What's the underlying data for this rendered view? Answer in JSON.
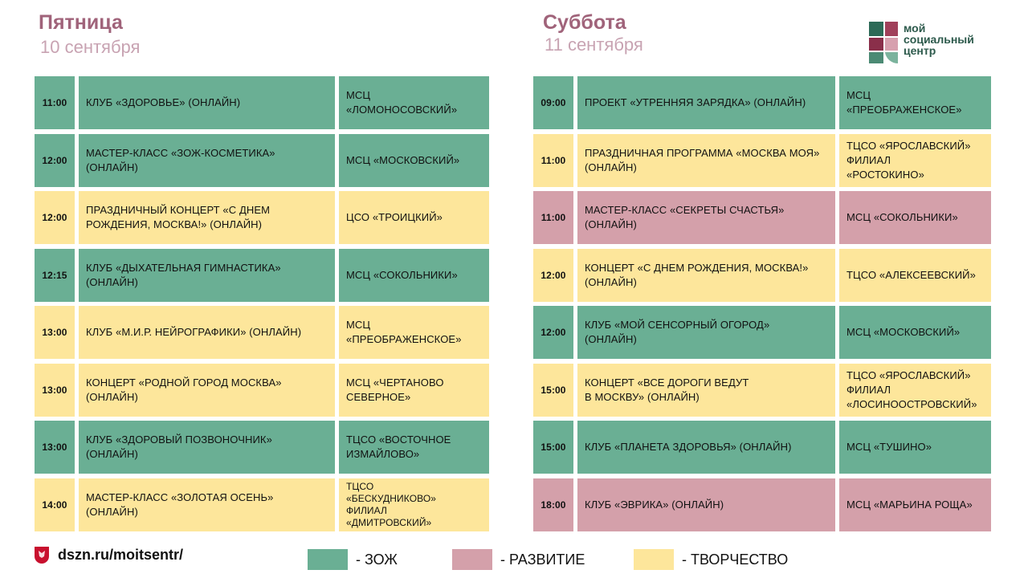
{
  "colors": {
    "zoj": "#6aaf94",
    "razvitie": "#d4a0aa",
    "tvorchestvo": "#fde69b",
    "title": "#a0637a",
    "date": "#c8a3b2"
  },
  "friday": {
    "title": "Пятница",
    "date": "10 сентября",
    "rows": [
      {
        "time": "11:00",
        "event": "КЛУБ «ЗДОРОВЬЕ» (ОНЛАЙН)",
        "place": "МСЦ\n«ЛОМОНОСОВСКИЙ»",
        "category": "zoj"
      },
      {
        "time": "12:00",
        "event": "МАСТЕР-КЛАСС «ЗОЖ-КОСМЕТИКА»\n(ОНЛАЙН)",
        "place": "МСЦ «МОСКОВСКИЙ»",
        "category": "zoj"
      },
      {
        "time": "12:00",
        "event": "ПРАЗДНИЧНЫЙ КОНЦЕРТ «С ДНЕМ\nРОЖДЕНИЯ, МОСКВА!» (ОНЛАЙН)",
        "place": "ЦСО «ТРОИЦКИЙ»",
        "category": "tvorchestvo"
      },
      {
        "time": "12:15",
        "event": "КЛУБ «ДЫХАТЕЛЬНАЯ ГИМНАСТИКА»\n(ОНЛАЙН)",
        "place": "МСЦ «СОКОЛЬНИКИ»",
        "category": "zoj"
      },
      {
        "time": "13:00",
        "event": "КЛУБ «М.И.Р. НЕЙРОГРАФИКИ» (ОНЛАЙН)",
        "place": "МСЦ\n«ПРЕОБРАЖЕНСКОЕ»",
        "category": "tvorchestvo"
      },
      {
        "time": "13:00",
        "event": "КОНЦЕРТ «РОДНОЙ ГОРОД МОСКВА»\n(ОНЛАЙН)",
        "place": "МСЦ «ЧЕРТАНОВО\nСЕВЕРНОЕ»",
        "category": "tvorchestvo"
      },
      {
        "time": "13:00",
        "event": "КЛУБ «ЗДОРОВЫЙ ПОЗВОНОЧНИК»\n(ОНЛАЙН)",
        "place": "ТЦСО «ВОСТОЧНОЕ\nИЗМАЙЛОВО»",
        "category": "zoj"
      },
      {
        "time": "14:00",
        "event": "МАСТЕР-КЛАСС «ЗОЛОТАЯ ОСЕНЬ»\n(ОНЛАЙН)",
        "place": "ТЦСО\n«БЕСКУДНИКОВО»\n ФИЛИАЛ\n«ДМИТРОВСКИЙ»",
        "category": "tvorchestvo"
      }
    ]
  },
  "saturday": {
    "title": "Суббота",
    "date": "11 сентября",
    "rows": [
      {
        "time": "09:00",
        "event": "ПРОЕКТ «УТРЕННЯЯ ЗАРЯДКА» (ОНЛАЙН)",
        "place": "МСЦ\n«ПРЕОБРАЖЕНСКОЕ»",
        "category": "zoj"
      },
      {
        "time": "11:00",
        "event": "ПРАЗДНИЧНАЯ ПРОГРАММА «МОСКВА МОЯ»\n(ОНЛАЙН)",
        "place": "ТЦСО «ЯРОСЛАВСКИЙ»\n ФИЛИАЛ\n«РОСТОКИНО»",
        "category": "tvorchestvo"
      },
      {
        "time": "11:00",
        "event": "МАСТЕР-КЛАСС «СЕКРЕТЫ СЧАСТЬЯ»\n(ОНЛАЙН)",
        "place": "МСЦ «СОКОЛЬНИКИ»",
        "category": "razvitie"
      },
      {
        "time": "12:00",
        "event": " КОНЦЕРТ «С ДНЕМ РОЖДЕНИЯ, МОСКВА!»\n(ОНЛАЙН)",
        "place": "ТЦСО «АЛЕКСЕЕВСКИЙ»",
        "category": "tvorchestvo"
      },
      {
        "time": "12:00",
        "event": "КЛУБ «МОЙ СЕНСОРНЫЙ ОГОРОД»\n(ОНЛАЙН)",
        "place": "МСЦ «МОСКОВСКИЙ»",
        "category": "zoj"
      },
      {
        "time": "15:00",
        "event": "КОНЦЕРТ «ВСЕ ДОРОГИ ВЕДУТ\nВ МОСКВУ» (ОНЛАЙН)",
        "place": "ТЦСО «ЯРОСЛАВСКИЙ»\nФИЛИАЛ\n«ЛОСИНООСТРОВСКИЙ»",
        "category": "tvorchestvo"
      },
      {
        "time": "15:00",
        "event": "КЛУБ «ПЛАНЕТА ЗДОРОВЬЯ» (ОНЛАЙН)",
        "place": "МСЦ «ТУШИНО»",
        "category": "zoj"
      },
      {
        "time": "18:00",
        "event": "КЛУБ «ЭВРИКА» (ОНЛАЙН)",
        "place": "МСЦ «МАРЬИНА РОЩА»",
        "category": "razvitie"
      }
    ]
  },
  "logo": {
    "text": "мой\nсоциальный\nцентр"
  },
  "footer": {
    "site": "dszn.ru/moitsentr/"
  },
  "legend": [
    {
      "label": "- ЗОЖ",
      "category": "zoj"
    },
    {
      "label": "- РАЗВИТИЕ",
      "category": "razvitie"
    },
    {
      "label": "- ТВОРЧЕСТВО",
      "category": "tvorchestvo"
    }
  ]
}
